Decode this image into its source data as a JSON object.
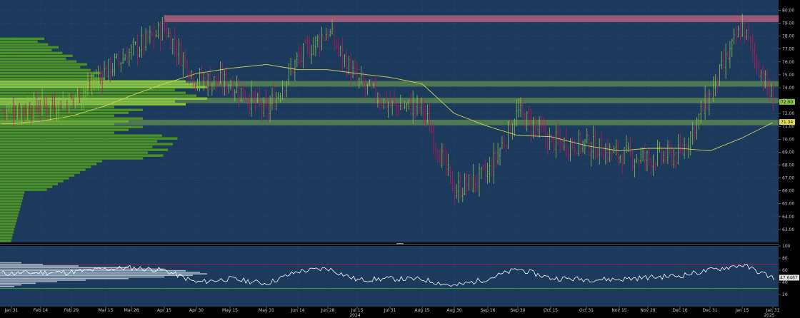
{
  "chart_data": [
    {
      "type": "candlestick",
      "title": "",
      "ylim": [
        62,
        80.8
      ],
      "y_ticks": [
        "63.00",
        "64.00",
        "65.00",
        "66.00",
        "67.00",
        "68.00",
        "69.00",
        "70.00",
        "71.00",
        "72.00",
        "73.00",
        "74.00",
        "75.00",
        "76.00",
        "77.00",
        "78.00",
        "79.00",
        "80.00"
      ],
      "x_ticks": [
        "Jan 31",
        "Feb 14",
        "Feb 29",
        "Mar 15",
        "Mar 28",
        "Apr 15",
        "Apr 30",
        "May 15",
        "May 31",
        "Jun 14",
        "Jun 28",
        "Jul 15",
        "Jul 31",
        "Aug 15",
        "Aug 30",
        "Sep 16",
        "Sep 30",
        "Oct 15",
        "Oct 31",
        "Nov 15",
        "Nov 29",
        "Dec 16",
        "Dec 31",
        "Jan 15",
        "Jan 31"
      ],
      "year_labels": [
        {
          "after": "Jun 28",
          "text": "2024"
        },
        {
          "after": "Jan 15",
          "text": "2025"
        }
      ],
      "price_path": [
        [
          "Jan 31",
          72.3
        ],
        [
          "Feb 14",
          72.6
        ],
        [
          "Feb 29",
          73.0
        ],
        [
          "Mar 15",
          75.3
        ],
        [
          "Mar 28",
          76.8
        ],
        [
          "Apr 15",
          78.6
        ],
        [
          "Apr 30",
          74.6
        ],
        [
          "May 15",
          74.4
        ],
        [
          "May 31",
          72.1
        ],
        [
          "Jun 14",
          76.2
        ],
        [
          "Jun 28",
          78.4
        ],
        [
          "Jul 15",
          74.5
        ],
        [
          "Jul 31",
          72.6
        ],
        [
          "Aug 15",
          72.5
        ],
        [
          "Aug 30",
          66.0
        ],
        [
          "Sep 16",
          67.3
        ],
        [
          "Sep 30",
          72.1
        ],
        [
          "Oct 15",
          69.8
        ],
        [
          "Oct 31",
          69.6
        ],
        [
          "Nov 15",
          68.8
        ],
        [
          "Nov 29",
          68.5
        ],
        [
          "Dec 16",
          68.8
        ],
        [
          "Dec 31",
          73.4
        ],
        [
          "Jan 15",
          78.8
        ],
        [
          "Jan 31",
          72.9
        ]
      ],
      "moving_average": [
        [
          "Jan 31",
          71.2
        ],
        [
          "Feb 14",
          71.4
        ],
        [
          "Feb 29",
          71.8
        ],
        [
          "Mar 15",
          72.6
        ],
        [
          "Mar 28",
          73.4
        ],
        [
          "Apr 15",
          74.3
        ],
        [
          "Apr 30",
          75.1
        ],
        [
          "May 15",
          75.5
        ],
        [
          "May 31",
          75.8
        ],
        [
          "Jun 14",
          75.4
        ],
        [
          "Jun 28",
          75.4
        ],
        [
          "Jul 15",
          75.1
        ],
        [
          "Jul 31",
          74.8
        ],
        [
          "Aug 15",
          74.3
        ],
        [
          "Aug 30",
          72.0
        ],
        [
          "Sep 16",
          71.0
        ],
        [
          "Sep 30",
          70.3
        ],
        [
          "Oct 15",
          70.2
        ],
        [
          "Oct 31",
          69.5
        ],
        [
          "Nov 15",
          69.1
        ],
        [
          "Nov 29",
          69.3
        ],
        [
          "Dec 16",
          69.3
        ],
        [
          "Dec 31",
          69.1
        ],
        [
          "Jan 15",
          70.1
        ],
        [
          "Jan 31",
          71.3
        ]
      ],
      "horizontal_bands": [
        {
          "name": "resistance",
          "from": 79.1,
          "to": 79.6,
          "color": "#b0607e"
        },
        {
          "name": "level-74",
          "from": 74.1,
          "to": 74.5,
          "color": "#8bc34a"
        },
        {
          "name": "level-73",
          "from": 72.8,
          "to": 73.2,
          "color": "#8bc34a"
        },
        {
          "name": "level-71",
          "from": 71.1,
          "to": 71.5,
          "color": "#8bc34a"
        }
      ],
      "volume_profile_price_levels": [
        62,
        81
      ],
      "last_price": "72.90",
      "ma_value": "71.34",
      "colors": {
        "background": "#1b3a5c",
        "up": "#8bc34a",
        "down": "#c2185b",
        "ma": "#d8d35a",
        "profile": "#4f9a1e",
        "profile_poc": "#8ed43a"
      }
    },
    {
      "type": "line",
      "ylim": [
        0,
        100
      ],
      "y_ticks": [
        "20",
        "40",
        "60",
        "80",
        "100"
      ],
      "levels": [
        70,
        30
      ],
      "current_value": "47.6467",
      "series_path": [
        [
          "Jan 31",
          55
        ],
        [
          "Feb 14",
          56
        ],
        [
          "Feb 29",
          57
        ],
        [
          "Mar 15",
          62
        ],
        [
          "Mar 28",
          64
        ],
        [
          "Apr 15",
          60
        ],
        [
          "Apr 30",
          40
        ],
        [
          "May 15",
          46
        ],
        [
          "May 31",
          38
        ],
        [
          "Jun 14",
          58
        ],
        [
          "Jun 28",
          63
        ],
        [
          "Jul 15",
          44
        ],
        [
          "Jul 31",
          46
        ],
        [
          "Aug 15",
          45
        ],
        [
          "Aug 30",
          34
        ],
        [
          "Sep 16",
          46
        ],
        [
          "Sep 30",
          62
        ],
        [
          "Oct 15",
          47
        ],
        [
          "Oct 31",
          45
        ],
        [
          "Nov 15",
          45
        ],
        [
          "Nov 29",
          48
        ],
        [
          "Dec 16",
          51
        ],
        [
          "Dec 31",
          60
        ],
        [
          "Jan 15",
          69
        ],
        [
          "Jan 31",
          47.6
        ]
      ],
      "colors": {
        "line": "#ffffff",
        "upper": "#c2185b",
        "lower": "#39c239",
        "background": "#1b3a5c"
      }
    }
  ]
}
